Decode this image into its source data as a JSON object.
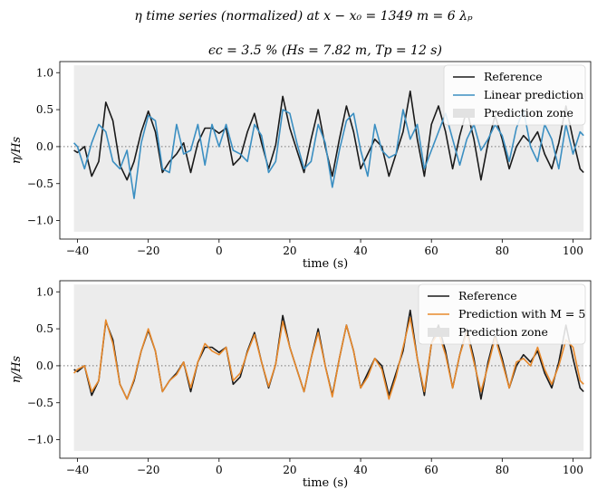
{
  "figure": {
    "suptitle": "η time series (normalized) at x − x₀ = 1349 m = 6 λₚ"
  },
  "chart_data": [
    {
      "type": "line",
      "title": "ϵc = 3.5 % (Hs = 7.82 m, Tp = 12 s)",
      "xlabel": "time (s)",
      "ylabel": "η/Hs",
      "xlim": [
        -45,
        105
      ],
      "ylim": [
        -1.25,
        1.15
      ],
      "xticks": [
        -40,
        -20,
        0,
        20,
        40,
        60,
        80,
        100
      ],
      "yticks": [
        -1.0,
        -0.5,
        0.0,
        0.5,
        1.0
      ],
      "ytick_labels": [
        "−1.0",
        "−0.5",
        "0.0",
        "0.5",
        "1.0"
      ],
      "xtick_labels": [
        "−40",
        "−20",
        "0",
        "20",
        "40",
        "60",
        "80",
        "100"
      ],
      "grid": false,
      "zero_line": "dotted",
      "legend_position": "top-right",
      "prediction_zone": {
        "x": [
          -41,
          103
        ],
        "y": [
          -1.15,
          1.1
        ],
        "color": "#ececec"
      },
      "series": [
        {
          "name": "Reference",
          "color": "#1a1a1a",
          "x": [
            -41,
            -40,
            -38,
            -36,
            -34,
            -32,
            -30,
            -28,
            -26,
            -24,
            -22,
            -20,
            -18,
            -16,
            -14,
            -12,
            -10,
            -8,
            -6,
            -4,
            -2,
            0,
            2,
            4,
            6,
            8,
            10,
            12,
            14,
            16,
            18,
            20,
            22,
            24,
            26,
            28,
            30,
            32,
            34,
            36,
            38,
            40,
            42,
            44,
            46,
            48,
            50,
            52,
            54,
            56,
            58,
            60,
            62,
            64,
            66,
            68,
            70,
            72,
            74,
            76,
            78,
            80,
            82,
            84,
            86,
            88,
            90,
            92,
            94,
            96,
            98,
            100,
            102,
            103
          ],
          "y": [
            -0.05,
            -0.08,
            0.0,
            -0.4,
            -0.2,
            0.6,
            0.35,
            -0.25,
            -0.45,
            -0.2,
            0.2,
            0.48,
            0.2,
            -0.35,
            -0.2,
            -0.1,
            0.05,
            -0.35,
            0.05,
            0.25,
            0.25,
            0.18,
            0.25,
            -0.25,
            -0.15,
            0.2,
            0.45,
            0.05,
            -0.3,
            0.02,
            0.68,
            0.25,
            -0.05,
            -0.35,
            0.1,
            0.5,
            0.0,
            -0.4,
            0.1,
            0.55,
            0.2,
            -0.3,
            -0.1,
            0.1,
            0.0,
            -0.4,
            -0.1,
            0.2,
            0.75,
            0.1,
            -0.4,
            0.3,
            0.55,
            0.2,
            -0.3,
            0.15,
            0.5,
            0.1,
            -0.45,
            0.05,
            0.42,
            0.1,
            -0.3,
            0.0,
            0.15,
            0.05,
            0.2,
            -0.1,
            -0.3,
            0.05,
            0.55,
            0.1,
            -0.3,
            -0.35
          ]
        },
        {
          "name": "Linear prediction",
          "color": "#3b8fc2",
          "x": [
            -41,
            -40,
            -38,
            -36,
            -34,
            -32,
            -30,
            -28,
            -26,
            -24,
            -22,
            -20,
            -18,
            -16,
            -14,
            -12,
            -10,
            -8,
            -6,
            -4,
            -2,
            0,
            2,
            4,
            6,
            8,
            10,
            12,
            14,
            16,
            18,
            20,
            22,
            24,
            26,
            28,
            30,
            32,
            34,
            36,
            38,
            40,
            42,
            44,
            46,
            48,
            50,
            52,
            54,
            56,
            58,
            60,
            62,
            64,
            66,
            68,
            70,
            72,
            74,
            76,
            78,
            80,
            82,
            84,
            86,
            88,
            90,
            92,
            94,
            96,
            98,
            100,
            102,
            103
          ],
          "y": [
            0.05,
            0.0,
            -0.3,
            0.05,
            0.3,
            0.2,
            -0.2,
            -0.3,
            -0.05,
            -0.7,
            0.05,
            0.42,
            0.35,
            -0.3,
            -0.35,
            0.3,
            -0.1,
            -0.05,
            0.3,
            -0.25,
            0.3,
            0.0,
            0.3,
            -0.05,
            -0.1,
            -0.2,
            0.3,
            0.15,
            -0.35,
            -0.2,
            0.5,
            0.45,
            0.05,
            -0.3,
            -0.2,
            0.3,
            0.05,
            -0.55,
            -0.05,
            0.35,
            0.45,
            -0.05,
            -0.4,
            0.3,
            -0.05,
            -0.15,
            -0.1,
            0.5,
            0.1,
            0.3,
            -0.3,
            -0.05,
            0.2,
            0.45,
            0.1,
            -0.25,
            0.1,
            0.3,
            -0.05,
            0.1,
            0.3,
            0.15,
            -0.2,
            0.25,
            0.5,
            0.0,
            -0.2,
            0.3,
            0.1,
            -0.3,
            0.3,
            -0.1,
            0.2,
            0.15
          ]
        }
      ]
    },
    {
      "type": "line",
      "title": "",
      "xlabel": "time (s)",
      "ylabel": "η/Hs",
      "xlim": [
        -45,
        105
      ],
      "ylim": [
        -1.25,
        1.15
      ],
      "xticks": [
        -40,
        -20,
        0,
        20,
        40,
        60,
        80,
        100
      ],
      "yticks": [
        -1.0,
        -0.5,
        0.0,
        0.5,
        1.0
      ],
      "ytick_labels": [
        "−1.0",
        "−0.5",
        "0.0",
        "0.5",
        "1.0"
      ],
      "xtick_labels": [
        "−40",
        "−20",
        "0",
        "20",
        "40",
        "60",
        "80",
        "100"
      ],
      "grid": false,
      "zero_line": "dotted",
      "legend_position": "top-right",
      "prediction_zone": {
        "x": [
          -41,
          103
        ],
        "y": [
          -1.15,
          1.1
        ],
        "color": "#ececec"
      },
      "series": [
        {
          "name": "Reference",
          "color": "#1a1a1a",
          "x": [
            -41,
            -40,
            -38,
            -36,
            -34,
            -32,
            -30,
            -28,
            -26,
            -24,
            -22,
            -20,
            -18,
            -16,
            -14,
            -12,
            -10,
            -8,
            -6,
            -4,
            -2,
            0,
            2,
            4,
            6,
            8,
            10,
            12,
            14,
            16,
            18,
            20,
            22,
            24,
            26,
            28,
            30,
            32,
            34,
            36,
            38,
            40,
            42,
            44,
            46,
            48,
            50,
            52,
            54,
            56,
            58,
            60,
            62,
            64,
            66,
            68,
            70,
            72,
            74,
            76,
            78,
            80,
            82,
            84,
            86,
            88,
            90,
            92,
            94,
            96,
            98,
            100,
            102,
            103
          ],
          "y": [
            -0.05,
            -0.08,
            0.0,
            -0.4,
            -0.2,
            0.6,
            0.35,
            -0.25,
            -0.45,
            -0.2,
            0.2,
            0.48,
            0.2,
            -0.35,
            -0.2,
            -0.1,
            0.05,
            -0.35,
            0.05,
            0.25,
            0.25,
            0.18,
            0.25,
            -0.25,
            -0.15,
            0.2,
            0.45,
            0.05,
            -0.3,
            0.02,
            0.68,
            0.25,
            -0.05,
            -0.35,
            0.1,
            0.5,
            0.0,
            -0.4,
            0.1,
            0.55,
            0.2,
            -0.3,
            -0.1,
            0.1,
            0.0,
            -0.4,
            -0.1,
            0.2,
            0.75,
            0.1,
            -0.4,
            0.3,
            0.55,
            0.2,
            -0.3,
            0.15,
            0.5,
            0.1,
            -0.45,
            0.05,
            0.42,
            0.1,
            -0.3,
            0.0,
            0.15,
            0.05,
            0.2,
            -0.1,
            -0.3,
            0.05,
            0.55,
            0.1,
            -0.3,
            -0.35
          ]
        },
        {
          "name": "Prediction with M = 5",
          "color": "#e8892b",
          "x": [
            -41,
            -40,
            -38,
            -36,
            -34,
            -32,
            -30,
            -28,
            -26,
            -24,
            -22,
            -20,
            -18,
            -16,
            -14,
            -12,
            -10,
            -8,
            -6,
            -4,
            -2,
            0,
            2,
            4,
            6,
            8,
            10,
            12,
            14,
            16,
            18,
            20,
            22,
            24,
            26,
            28,
            30,
            32,
            34,
            36,
            38,
            40,
            42,
            44,
            46,
            48,
            50,
            52,
            54,
            56,
            58,
            60,
            62,
            64,
            66,
            68,
            70,
            72,
            74,
            76,
            78,
            80,
            82,
            84,
            86,
            88,
            90,
            92,
            94,
            96,
            98,
            100,
            102,
            103
          ],
          "y": [
            -0.1,
            -0.05,
            0.0,
            -0.35,
            -0.2,
            0.62,
            0.3,
            -0.25,
            -0.45,
            -0.18,
            0.2,
            0.5,
            0.2,
            -0.35,
            -0.2,
            -0.12,
            0.05,
            -0.3,
            0.05,
            0.3,
            0.2,
            0.15,
            0.25,
            -0.2,
            -0.1,
            0.18,
            0.42,
            0.05,
            -0.28,
            0.02,
            0.6,
            0.25,
            -0.05,
            -0.35,
            0.1,
            0.45,
            0.0,
            -0.42,
            0.1,
            0.55,
            0.2,
            -0.3,
            -0.15,
            0.1,
            -0.05,
            -0.45,
            -0.15,
            0.25,
            0.65,
            0.1,
            -0.35,
            0.3,
            0.45,
            0.15,
            -0.3,
            0.15,
            0.45,
            0.05,
            -0.35,
            0.0,
            0.38,
            0.05,
            -0.3,
            0.05,
            0.1,
            0.0,
            0.25,
            -0.05,
            -0.25,
            0.0,
            0.35,
            0.25,
            -0.2,
            -0.25
          ]
        }
      ]
    }
  ]
}
